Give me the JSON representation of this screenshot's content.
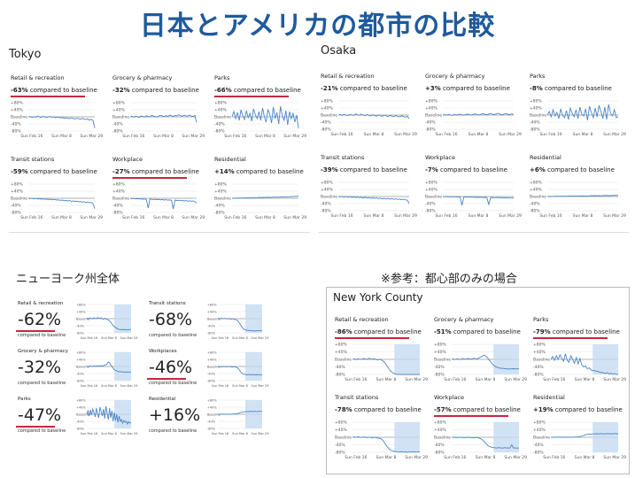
{
  "title": "日本とアメリカの都市の比較",
  "sections": {
    "tokyo": "Tokyo",
    "osaka": "Osaka",
    "nys": "ニューヨーク州全体",
    "ref": "※参考：都心部のみの場合",
    "nyc": "New York County"
  },
  "common": {
    "compared": "compared to baseline",
    "compared_small": "compared to baseline",
    "x_ticks": [
      "Sun Feb 16",
      "Sun Mar 8",
      "Sun Mar 29"
    ],
    "y_ticks": [
      "+80%",
      "+40%",
      "Baseline",
      "-40%",
      "-80%"
    ]
  },
  "colors": {
    "line": "#4a86c8",
    "fill": "#c6dbf1",
    "red": "#c8283e",
    "title": "#1f5a9c"
  },
  "chart_data": [
    {
      "id": "tokyo",
      "type": "line",
      "ylim": [
        -80,
        80
      ],
      "panels": [
        {
          "name": "Retail & recreation",
          "value": "-63%",
          "highlight": true,
          "values": [
            0,
            2,
            -3,
            1,
            -2,
            3,
            0,
            -4,
            2,
            1,
            -3,
            -1,
            2,
            -2,
            0,
            -5,
            -1,
            -3,
            -6,
            -4,
            -8,
            -5,
            -7,
            -10,
            -6,
            -9,
            -12,
            -8,
            -10,
            -14,
            -9,
            -12,
            -15,
            -11,
            -18,
            -14,
            -20,
            -63
          ]
        },
        {
          "name": "Grocery & pharmacy",
          "value": "-32%",
          "highlight": false,
          "values": [
            0,
            3,
            -2,
            4,
            1,
            -3,
            5,
            2,
            -1,
            6,
            3,
            0,
            8,
            4,
            2,
            -2,
            5,
            9,
            4,
            1,
            7,
            3,
            10,
            6,
            2,
            8,
            5,
            12,
            7,
            3,
            9,
            6,
            4,
            10,
            5,
            2,
            8,
            -32
          ]
        },
        {
          "name": "Parks",
          "value": "-66%",
          "highlight": true,
          "values": [
            0,
            30,
            -10,
            25,
            -20,
            40,
            5,
            -15,
            35,
            -5,
            20,
            -25,
            45,
            10,
            -10,
            30,
            -20,
            50,
            0,
            -30,
            40,
            15,
            -35,
            55,
            -10,
            25,
            -40,
            60,
            5,
            -20,
            35,
            -45,
            30,
            -10,
            20,
            -30,
            10,
            -66
          ]
        },
        {
          "name": "Transit stations",
          "value": "-59%",
          "highlight": false,
          "values": [
            0,
            -2,
            1,
            -3,
            0,
            -4,
            -2,
            -5,
            -3,
            -6,
            -4,
            -7,
            -5,
            -9,
            -6,
            -8,
            -10,
            -9,
            -12,
            -10,
            -14,
            -12,
            -15,
            -13,
            -17,
            -15,
            -18,
            -16,
            -20,
            -18,
            -22,
            -19,
            -24,
            -21,
            -25,
            -23,
            -30,
            -59
          ]
        },
        {
          "name": "Workplace",
          "value": "-27%",
          "highlight": true,
          "values": [
            0,
            -2,
            -1,
            -3,
            -2,
            -4,
            -3,
            -5,
            -4,
            -6,
            -55,
            -4,
            -6,
            -7,
            -5,
            -8,
            -6,
            -9,
            -7,
            -10,
            -8,
            -11,
            -9,
            -12,
            -60,
            -10,
            -13,
            -11,
            -14,
            -12,
            -15,
            -13,
            -16,
            -14,
            -17,
            -15,
            -18,
            -27
          ]
        },
        {
          "name": "Residential",
          "value": "+14%",
          "highlight": false,
          "values": [
            0,
            1,
            0,
            2,
            1,
            2,
            1,
            3,
            2,
            3,
            2,
            4,
            3,
            4,
            3,
            5,
            4,
            5,
            4,
            6,
            5,
            6,
            5,
            7,
            6,
            7,
            6,
            8,
            7,
            8,
            7,
            9,
            8,
            10,
            9,
            11,
            10,
            14
          ]
        }
      ]
    },
    {
      "id": "osaka",
      "type": "line",
      "ylim": [
        -80,
        80
      ],
      "panels": [
        {
          "name": "Retail & recreation",
          "value": "-21%",
          "highlight": false,
          "values": [
            0,
            3,
            -2,
            5,
            0,
            -3,
            4,
            1,
            -2,
            6,
            2,
            -1,
            5,
            0,
            -4,
            3,
            -2,
            -5,
            2,
            -3,
            -6,
            1,
            -4,
            -7,
            0,
            -5,
            -8,
            -2,
            -6,
            -9,
            -3,
            -7,
            -10,
            -4,
            -8,
            -12,
            -6,
            -21
          ]
        },
        {
          "name": "Grocery & pharmacy",
          "value": "+3%",
          "highlight": false,
          "values": [
            0,
            2,
            -1,
            3,
            1,
            -2,
            4,
            0,
            2,
            5,
            1,
            -1,
            3,
            6,
            2,
            0,
            4,
            7,
            3,
            1,
            5,
            8,
            4,
            2,
            6,
            9,
            5,
            3,
            7,
            10,
            4,
            2,
            6,
            8,
            5,
            3,
            7,
            3
          ]
        },
        {
          "name": "Parks",
          "value": "-8%",
          "highlight": false,
          "values": [
            0,
            20,
            -10,
            30,
            -5,
            15,
            -20,
            35,
            0,
            -15,
            25,
            -25,
            40,
            10,
            -10,
            30,
            -20,
            45,
            5,
            -5,
            35,
            -30,
            50,
            15,
            -15,
            40,
            -10,
            55,
            20,
            -20,
            45,
            -25,
            60,
            10,
            -5,
            30,
            -15,
            -8
          ]
        },
        {
          "name": "Transit stations",
          "value": "-39%",
          "highlight": false,
          "values": [
            0,
            -2,
            1,
            -3,
            0,
            -4,
            -1,
            -5,
            -2,
            -6,
            -3,
            -7,
            -4,
            -8,
            -5,
            -9,
            -6,
            -10,
            -7,
            -11,
            -8,
            -12,
            -9,
            -13,
            -10,
            -14,
            -11,
            -15,
            -12,
            -16,
            -13,
            -17,
            -14,
            -18,
            -15,
            -19,
            -20,
            -39
          ]
        },
        {
          "name": "Workplace",
          "value": "-7%",
          "highlight": false,
          "values": [
            0,
            -1,
            0,
            -2,
            -1,
            -2,
            -1,
            -3,
            -2,
            -3,
            -50,
            -2,
            -3,
            -4,
            -3,
            -4,
            -3,
            -5,
            -4,
            -5,
            -4,
            -6,
            -5,
            -6,
            -45,
            -5,
            -6,
            -7,
            -6,
            -7,
            -6,
            -8,
            -7,
            -8,
            -7,
            -9,
            -8,
            -7
          ]
        },
        {
          "name": "Residential",
          "value": "+6%",
          "highlight": false,
          "values": [
            0,
            1,
            0,
            1,
            0,
            2,
            1,
            2,
            1,
            2,
            1,
            3,
            2,
            3,
            2,
            3,
            2,
            4,
            3,
            4,
            3,
            4,
            3,
            5,
            4,
            5,
            4,
            5,
            4,
            6,
            5,
            6,
            5,
            6,
            5,
            7,
            6,
            6
          ]
        }
      ]
    },
    {
      "id": "nys",
      "type": "area",
      "ylim": [
        -80,
        80
      ],
      "panels": [
        {
          "name": "Retail & recreation",
          "value": "-62%",
          "highlight": true,
          "values": [
            0,
            3,
            -2,
            4,
            1,
            -1,
            5,
            2,
            0,
            6,
            3,
            1,
            4,
            -1,
            -3,
            2,
            -2,
            -5,
            -8,
            -12,
            -20,
            -30,
            -38,
            -45,
            -50,
            -55,
            -58,
            -60,
            -62,
            -61,
            -63,
            -60,
            -62,
            -64,
            -61,
            -63,
            -60,
            -62
          ]
        },
        {
          "name": "Grocery & pharmacy",
          "value": "-32%",
          "highlight": false,
          "values": [
            0,
            2,
            -1,
            3,
            1,
            0,
            4,
            2,
            1,
            5,
            3,
            2,
            6,
            4,
            3,
            8,
            10,
            15,
            25,
            20,
            10,
            0,
            -10,
            -18,
            -22,
            -25,
            -28,
            -30,
            -29,
            -31,
            -30,
            -32,
            -31,
            -33,
            -30,
            -32,
            -31,
            -32
          ]
        },
        {
          "name": "Parks",
          "value": "-47%",
          "highlight": true,
          "values": [
            0,
            20,
            -10,
            25,
            -5,
            30,
            10,
            -15,
            35,
            0,
            -20,
            40,
            15,
            -10,
            30,
            -25,
            45,
            5,
            -30,
            35,
            -20,
            20,
            -40,
            10,
            -35,
            0,
            -45,
            -10,
            -40,
            -30,
            -50,
            -35,
            -45,
            -40,
            -55,
            -42,
            -50,
            -47
          ]
        },
        {
          "name": "Transit stations",
          "value": "-68%",
          "highlight": false,
          "values": [
            0,
            2,
            -1,
            3,
            1,
            -1,
            2,
            0,
            -2,
            1,
            -1,
            -3,
            0,
            -2,
            -4,
            -5,
            -8,
            -15,
            -25,
            -35,
            -45,
            -55,
            -60,
            -63,
            -65,
            -66,
            -67,
            -68,
            -67,
            -69,
            -68,
            -70,
            -68,
            -69,
            -67,
            -68,
            -69,
            -68
          ]
        },
        {
          "name": "Workplaces",
          "value": "-46%",
          "highlight": true,
          "values": [
            0,
            -1,
            0,
            -2,
            -1,
            0,
            -1,
            -2,
            -1,
            0,
            -2,
            -1,
            -3,
            -2,
            -1,
            -4,
            -6,
            -12,
            -20,
            -30,
            -38,
            -42,
            -44,
            -45,
            -46,
            -47,
            -45,
            -46,
            -48,
            -45,
            -47,
            -46,
            -48,
            -45,
            -47,
            -46,
            -47,
            -46
          ]
        },
        {
          "name": "Residential",
          "value": "+16%",
          "highlight": false,
          "values": [
            0,
            0,
            1,
            0,
            1,
            1,
            0,
            1,
            0,
            1,
            1,
            0,
            1,
            1,
            2,
            2,
            3,
            5,
            8,
            10,
            12,
            13,
            14,
            15,
            15,
            16,
            15,
            16,
            17,
            15,
            16,
            17,
            16,
            15,
            16,
            17,
            16,
            16
          ]
        }
      ]
    },
    {
      "id": "nyc",
      "type": "area",
      "ylim": [
        -80,
        80
      ],
      "panels": [
        {
          "name": "Retail & recreation",
          "value": "-86%",
          "highlight": true,
          "values": [
            0,
            3,
            -2,
            4,
            1,
            -1,
            5,
            2,
            0,
            6,
            3,
            1,
            4,
            -1,
            -3,
            2,
            -4,
            -10,
            -20,
            -35,
            -50,
            -62,
            -70,
            -76,
            -80,
            -82,
            -84,
            -85,
            -86,
            -84,
            -87,
            -85,
            -86,
            -88,
            -85,
            -87,
            -86,
            -86
          ]
        },
        {
          "name": "Grocery & pharmacy",
          "value": "-51%",
          "highlight": false,
          "values": [
            0,
            2,
            -1,
            3,
            1,
            0,
            4,
            2,
            1,
            5,
            3,
            2,
            6,
            4,
            3,
            8,
            12,
            18,
            22,
            15,
            5,
            -8,
            -20,
            -30,
            -38,
            -42,
            -45,
            -48,
            -47,
            -50,
            -49,
            -52,
            -50,
            -51,
            -49,
            -52,
            -50,
            -51
          ]
        },
        {
          "name": "Parks",
          "value": "-79%",
          "highlight": true,
          "values": [
            0,
            15,
            -5,
            20,
            0,
            25,
            5,
            -10,
            30,
            -5,
            -15,
            20,
            0,
            -20,
            10,
            -25,
            5,
            -30,
            -40,
            -35,
            -50,
            -45,
            -55,
            -60,
            -58,
            -65,
            -62,
            -70,
            -68,
            -72,
            -75,
            -70,
            -78,
            -74,
            -80,
            -76,
            -82,
            -79
          ]
        },
        {
          "name": "Transit stations",
          "value": "-78%",
          "highlight": false,
          "values": [
            0,
            2,
            -1,
            3,
            1,
            -1,
            2,
            0,
            -2,
            1,
            -1,
            -3,
            0,
            -2,
            -4,
            -6,
            -10,
            -20,
            -35,
            -50,
            -60,
            -68,
            -72,
            -75,
            -76,
            -77,
            -78,
            -77,
            -79,
            -78,
            -80,
            -78,
            -79,
            -77,
            -78,
            -79,
            -78,
            -78
          ]
        },
        {
          "name": "Workplace",
          "value": "-57%",
          "highlight": true,
          "values": [
            0,
            -1,
            0,
            -2,
            -1,
            0,
            -1,
            -2,
            -1,
            0,
            -2,
            -1,
            -3,
            -2,
            -1,
            -4,
            -8,
            -15,
            -25,
            -35,
            -45,
            -50,
            -53,
            -55,
            -56,
            -57,
            -55,
            -56,
            -58,
            -55,
            -57,
            -56,
            -58,
            -40,
            -57,
            -56,
            -58,
            -57
          ]
        },
        {
          "name": "Residential",
          "value": "+19%",
          "highlight": false,
          "values": [
            0,
            0,
            1,
            0,
            1,
            1,
            0,
            1,
            0,
            1,
            1,
            0,
            1,
            1,
            2,
            2,
            4,
            7,
            10,
            13,
            15,
            16,
            17,
            18,
            18,
            19,
            18,
            19,
            20,
            18,
            19,
            20,
            19,
            18,
            19,
            20,
            19,
            19
          ]
        }
      ]
    }
  ]
}
